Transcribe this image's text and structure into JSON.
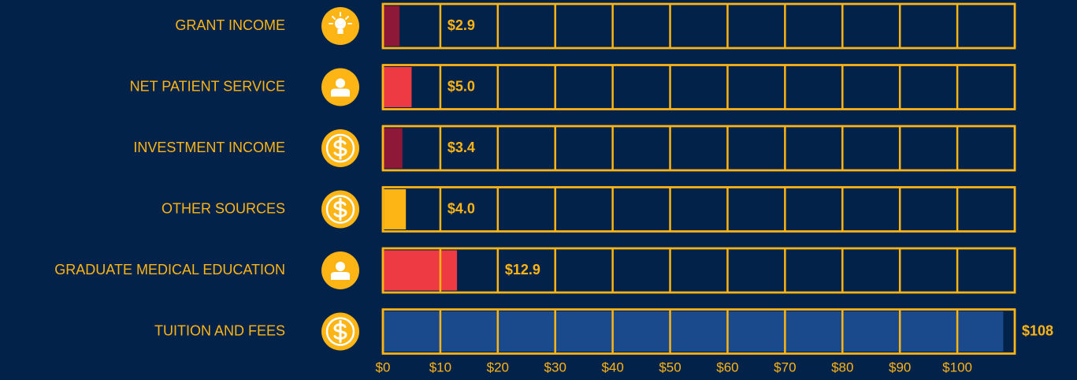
{
  "chart_data": {
    "type": "bar",
    "orientation": "horizontal",
    "categories": [
      "GRANT INCOME",
      "NET PATIENT SERVICE",
      "INVESTMENT INCOME",
      "OTHER SOURCES",
      "GRADUATE MEDICAL EDUCATION",
      "TUITION AND FEES"
    ],
    "values": [
      2.9,
      5.0,
      3.4,
      4.0,
      12.9,
      108
    ],
    "value_labels": [
      "$2.9",
      "$5.0",
      "$3.4",
      "$4.0",
      "$12.9",
      "$108"
    ],
    "colors": [
      "#8e1838",
      "#ee3a43",
      "#8e1838",
      "#fdb515",
      "#ee3a43",
      "#1b4a8c"
    ],
    "xlim": [
      0,
      110
    ],
    "xticks": [
      {
        "value": 0,
        "label": "$0"
      },
      {
        "value": 10,
        "label": "$10"
      },
      {
        "value": 20,
        "label": "$20"
      },
      {
        "value": 30,
        "label": "$30"
      },
      {
        "value": 40,
        "label": "$40"
      },
      {
        "value": 50,
        "label": "$50"
      },
      {
        "value": 60,
        "label": "$60"
      },
      {
        "value": 70,
        "label": "$70"
      },
      {
        "value": 80,
        "label": "$80"
      },
      {
        "value": 90,
        "label": "$90"
      },
      {
        "value": 100,
        "label": "$100"
      }
    ],
    "grid": true
  }
}
